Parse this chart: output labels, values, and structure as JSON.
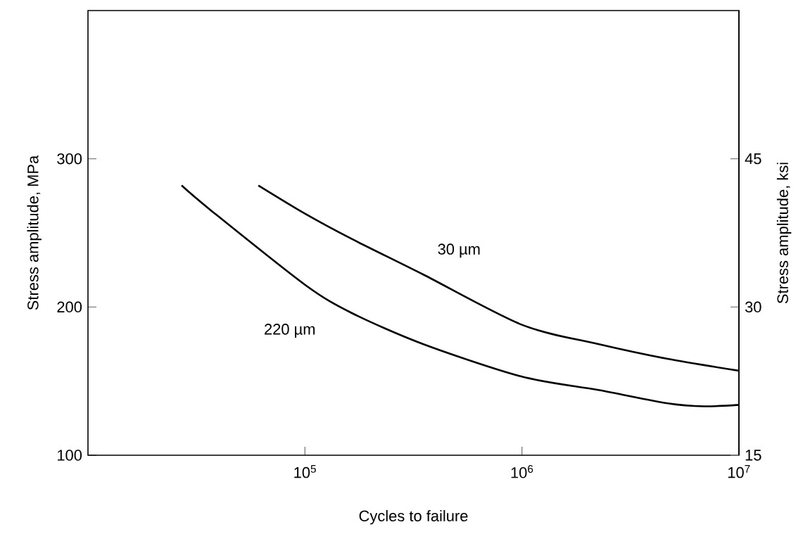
{
  "chart_data": {
    "type": "line",
    "xlabel": "Cycles to failure",
    "ylabel": "Stress amplitude, MPa",
    "y2label": "Stress amplitude, ksi",
    "log": "x",
    "grid": false,
    "marker": "none",
    "line_style": "solid",
    "xlim": [
      10000,
      10000000
    ],
    "xticks": [
      {
        "value": 100000,
        "label": "10$^{5}$"
      },
      {
        "value": 1000000,
        "label": "10$^{6}$"
      },
      {
        "value": 10000000,
        "label": "10$^{7}$"
      }
    ],
    "ylim": [
      100,
      400
    ],
    "yticks": [
      100,
      200,
      300
    ],
    "y2lim": [
      15,
      60
    ],
    "y2ticks": [
      15,
      30,
      45
    ],
    "series": [
      {
        "color": "#000000",
        "x": [
          61000,
          100000,
          164000,
          350000,
          1000000,
          2250000,
          4700000,
          10000000
        ],
        "values": [
          282,
          263,
          246,
          222,
          188,
          175,
          165,
          157
        ]
      },
      {
        "color": "#000000",
        "x": [
          27000,
          37000,
          100000,
          164000,
          350000,
          1000000,
          2250000,
          4700000,
          6900000,
          10000000
        ],
        "values": [
          282,
          265,
          215,
          196,
          175,
          153,
          144,
          135,
          133,
          134
        ]
      }
    ],
    "annotations": [
      "30 µm",
      "220 µm"
    ]
  }
}
